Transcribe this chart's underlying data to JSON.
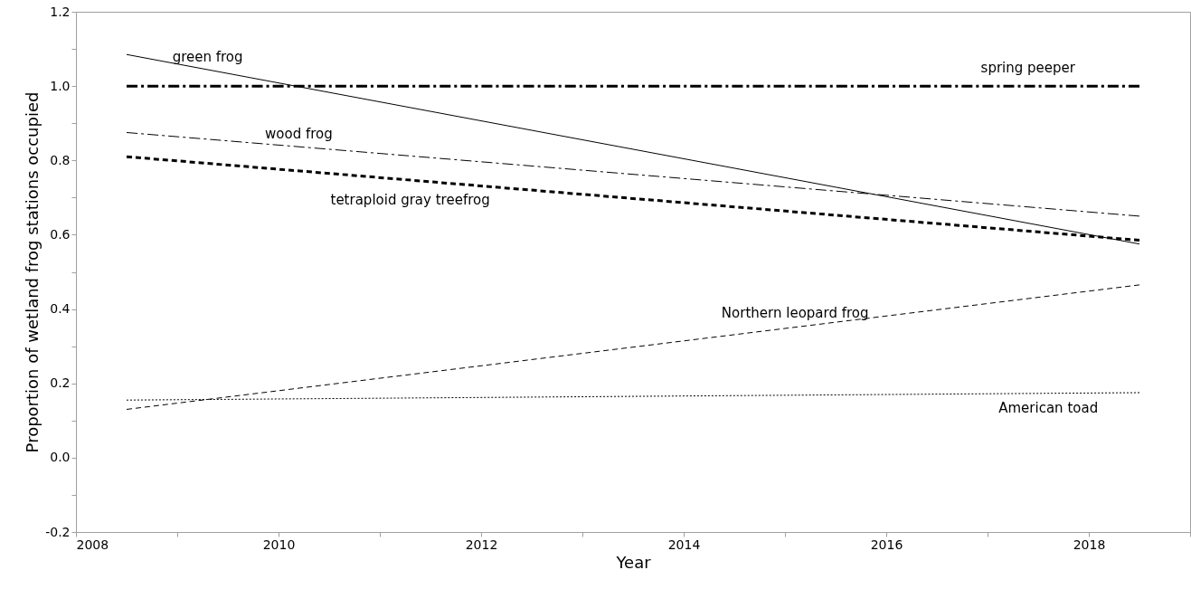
{
  "chart_data": {
    "type": "line",
    "xlabel": "Year",
    "ylabel": "Proportion of wetland frog stations occupied",
    "xlim": [
      2008,
      2019
    ],
    "ylim": [
      -0.2,
      1.2
    ],
    "xticks": [
      2008,
      {
        "value": 2009,
        "label": null
      },
      2010,
      {
        "value": 2011,
        "label": null
      },
      2012,
      {
        "value": 2013,
        "label": null
      },
      2014,
      {
        "value": 2015,
        "label": null
      },
      2016,
      {
        "value": 2017,
        "label": null
      },
      2018,
      {
        "value": 2019,
        "label": null
      }
    ],
    "yticks": [
      -0.2,
      {
        "value": -0.1,
        "label": null
      },
      {
        "value": 0,
        "label": "0.0"
      },
      {
        "value": 0.1,
        "label": null
      },
      0.2,
      {
        "value": 0.3,
        "label": null
      },
      0.4,
      {
        "value": 0.5,
        "label": null
      },
      0.6,
      {
        "value": 0.7,
        "label": null
      },
      0.8,
      {
        "value": 0.9,
        "label": null
      },
      {
        "value": 1,
        "label": "1.0"
      },
      {
        "value": 1.1,
        "label": null
      },
      1.2
    ],
    "grid": false,
    "marker": "none",
    "x": [
      2008.5,
      2018.5
    ],
    "series": [
      {
        "name": "green frog",
        "color": "#000000",
        "line_style": "solid",
        "values": [
          1.085,
          0.575
        ]
      },
      {
        "name": "spring peeper",
        "color": "#000000",
        "line_style": "dashdot",
        "values": [
          1.0,
          1.0
        ]
      },
      {
        "name": "wood frog",
        "color": "#000000",
        "line_style": "dashdot",
        "values": [
          0.875,
          0.65
        ]
      },
      {
        "name": "tetraploid gray treefrog",
        "color": "#000000",
        "line_style": "dashed",
        "values": [
          0.81,
          0.585
        ]
      },
      {
        "name": "Northern leopard frog",
        "color": "#000000",
        "line_style": "dashed",
        "values": [
          0.13,
          0.465
        ]
      },
      {
        "name": "American toad",
        "color": "#000000",
        "line_style": "dotted",
        "values": [
          0.155,
          0.175
        ]
      }
    ]
  }
}
